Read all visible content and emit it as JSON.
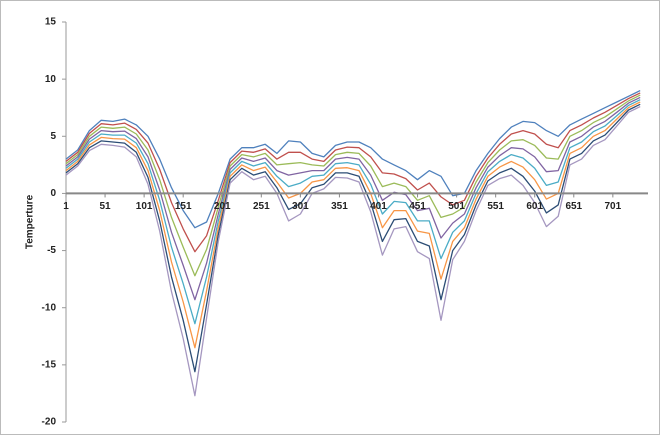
{
  "chart_data": {
    "type": "line",
    "y_label": "Temperture",
    "x": [
      1,
      16,
      31,
      46,
      61,
      76,
      91,
      106,
      121,
      136,
      151,
      166,
      181,
      196,
      211,
      226,
      241,
      256,
      271,
      286,
      301,
      316,
      331,
      346,
      361,
      376,
      391,
      406,
      421,
      436,
      451,
      466,
      481,
      496,
      511,
      526,
      541,
      556,
      571,
      586,
      601,
      616,
      631,
      646,
      661,
      676,
      691,
      706,
      721,
      736
    ],
    "xlim": [
      1,
      746
    ],
    "xticks": [
      1,
      51,
      101,
      151,
      201,
      251,
      301,
      351,
      401,
      451,
      501,
      551,
      601,
      651,
      701
    ],
    "ylim": [
      -20,
      15
    ],
    "yticks": [
      -20,
      -15,
      -10,
      -5,
      0,
      5,
      10,
      15
    ],
    "grid": false,
    "series": [
      {
        "color": "#4f81bd",
        "values": [
          3,
          3.8,
          5.5,
          6.4,
          6.3,
          6.5,
          6,
          5,
          3,
          0.5,
          -1.5,
          -3,
          -2.5,
          0,
          3,
          4,
          4,
          4.3,
          3.5,
          4.6,
          4.5,
          3.5,
          3.2,
          4.2,
          4.5,
          4.5,
          4,
          3,
          2.5,
          2,
          1.2,
          2,
          1.5,
          -0.2,
          0,
          2,
          3.5,
          4.8,
          5.8,
          6.3,
          6.2,
          5.5,
          5,
          6,
          6.5,
          7,
          7.5,
          8,
          8.5,
          9
        ]
      },
      {
        "color": "#c0504d",
        "values": [
          2.8,
          3.6,
          5.25,
          6.1,
          6,
          6.15,
          5.6,
          4.4,
          2.1,
          -0.8,
          -3.1,
          -5.1,
          -3.7,
          -0.6,
          2.7,
          3.7,
          3.6,
          3.9,
          3,
          3.6,
          3.6,
          3,
          2.8,
          3.8,
          4.05,
          4,
          3.2,
          1.8,
          1.7,
          1.3,
          0.3,
          0.9,
          -0.3,
          -1,
          -0.6,
          1.5,
          3.1,
          4.3,
          5.2,
          5.5,
          5.2,
          4.3,
          4,
          5.5,
          6,
          6.6,
          7.1,
          7.7,
          8.3,
          8.8
        ]
      },
      {
        "color": "#9bbb59",
        "values": [
          2.6,
          3.4,
          5,
          5.8,
          5.7,
          5.8,
          5.2,
          3.8,
          1.2,
          -2.1,
          -4.7,
          -7.2,
          -4.9,
          -1.2,
          2.4,
          3.4,
          3.2,
          3.5,
          2.5,
          2.6,
          2.7,
          2.5,
          2.4,
          3.4,
          3.6,
          3.5,
          2.4,
          0.6,
          0.9,
          0.6,
          -0.6,
          -0.2,
          -2.1,
          -1.8,
          -1.2,
          1,
          2.7,
          3.8,
          4.6,
          4.7,
          4.2,
          3.1,
          3,
          5,
          5.5,
          6.2,
          6.7,
          7.4,
          8.1,
          8.6
        ]
      },
      {
        "color": "#8064a2",
        "values": [
          2.4,
          3.2,
          4.75,
          5.5,
          5.4,
          5.45,
          4.8,
          3.2,
          0.3,
          -3.4,
          -6.3,
          -9.3,
          -6.1,
          -1.8,
          2.1,
          3.1,
          2.8,
          3.1,
          2,
          1.6,
          1.8,
          2,
          2,
          3,
          3.15,
          3,
          1.6,
          -0.6,
          0.1,
          -0.1,
          -1.5,
          -1.3,
          -3.9,
          -2.6,
          -1.8,
          0.5,
          2.3,
          3.3,
          4,
          3.9,
          3.2,
          1.9,
          2,
          4.5,
          5,
          5.8,
          6.3,
          7.1,
          7.9,
          8.4
        ]
      },
      {
        "color": "#4bacc6",
        "values": [
          2.2,
          3,
          4.5,
          5.2,
          5.1,
          5.1,
          4.4,
          2.6,
          -0.6,
          -4.7,
          -7.9,
          -11.4,
          -7.3,
          -2.4,
          1.8,
          2.8,
          2.4,
          2.7,
          1.5,
          0.6,
          0.9,
          1.5,
          1.6,
          2.6,
          2.7,
          2.5,
          0.8,
          -1.8,
          -0.7,
          -0.8,
          -2.4,
          -2.4,
          -5.7,
          -3.4,
          -2.4,
          0,
          1.9,
          2.8,
          3.4,
          3.1,
          2.2,
          0.7,
          1,
          4,
          4.5,
          5.4,
          5.9,
          6.8,
          7.7,
          8.2
        ]
      },
      {
        "color": "#f79646",
        "values": [
          2,
          2.8,
          4.25,
          4.9,
          4.8,
          4.75,
          4,
          2,
          -1.5,
          -6,
          -9.5,
          -13.5,
          -8.5,
          -3,
          1.5,
          2.5,
          2,
          2.3,
          1,
          -0.4,
          0,
          1,
          1.2,
          2.2,
          2.25,
          2,
          0,
          -3,
          -1.5,
          -1.5,
          -3.3,
          -3.5,
          -7.5,
          -4.2,
          -3,
          -0.5,
          1.5,
          2.3,
          2.8,
          2.3,
          1.2,
          -0.5,
          0,
          3.5,
          4,
          5,
          5.5,
          6.5,
          7.5,
          8
        ]
      },
      {
        "color": "#2c4d75",
        "values": [
          1.8,
          2.6,
          4,
          4.6,
          4.5,
          4.4,
          3.6,
          1.4,
          -2.4,
          -7.3,
          -11.1,
          -15.6,
          -9.7,
          -3.6,
          1.2,
          2.2,
          1.6,
          1.9,
          0.5,
          -1.4,
          -0.9,
          0.5,
          0.8,
          1.8,
          1.8,
          1.5,
          -0.8,
          -4.2,
          -2.3,
          -2.2,
          -4.2,
          -4.6,
          -9.3,
          -5,
          -3.6,
          -1,
          1.1,
          1.8,
          2.2,
          1.5,
          0.2,
          -1.7,
          -1,
          3,
          3.5,
          4.6,
          5.1,
          6.2,
          7.3,
          7.8
        ]
      },
      {
        "color": "#a597c0",
        "values": [
          1.6,
          2.4,
          3.75,
          4.3,
          4.2,
          4.05,
          3.2,
          0.8,
          -3.3,
          -8.6,
          -12.7,
          -17.7,
          -10.9,
          -4.2,
          0.9,
          1.9,
          1.2,
          1.5,
          0,
          -2.4,
          -1.8,
          0,
          0.4,
          1.4,
          1.35,
          1,
          -1.6,
          -5.4,
          -3.1,
          -2.9,
          -5.1,
          -5.7,
          -11.1,
          -5.8,
          -4.2,
          -1.5,
          0.7,
          1.3,
          1.6,
          0.7,
          -0.8,
          -2.9,
          -2,
          2.5,
          3,
          4.2,
          4.7,
          5.9,
          7.1,
          7.6
        ]
      }
    ]
  }
}
